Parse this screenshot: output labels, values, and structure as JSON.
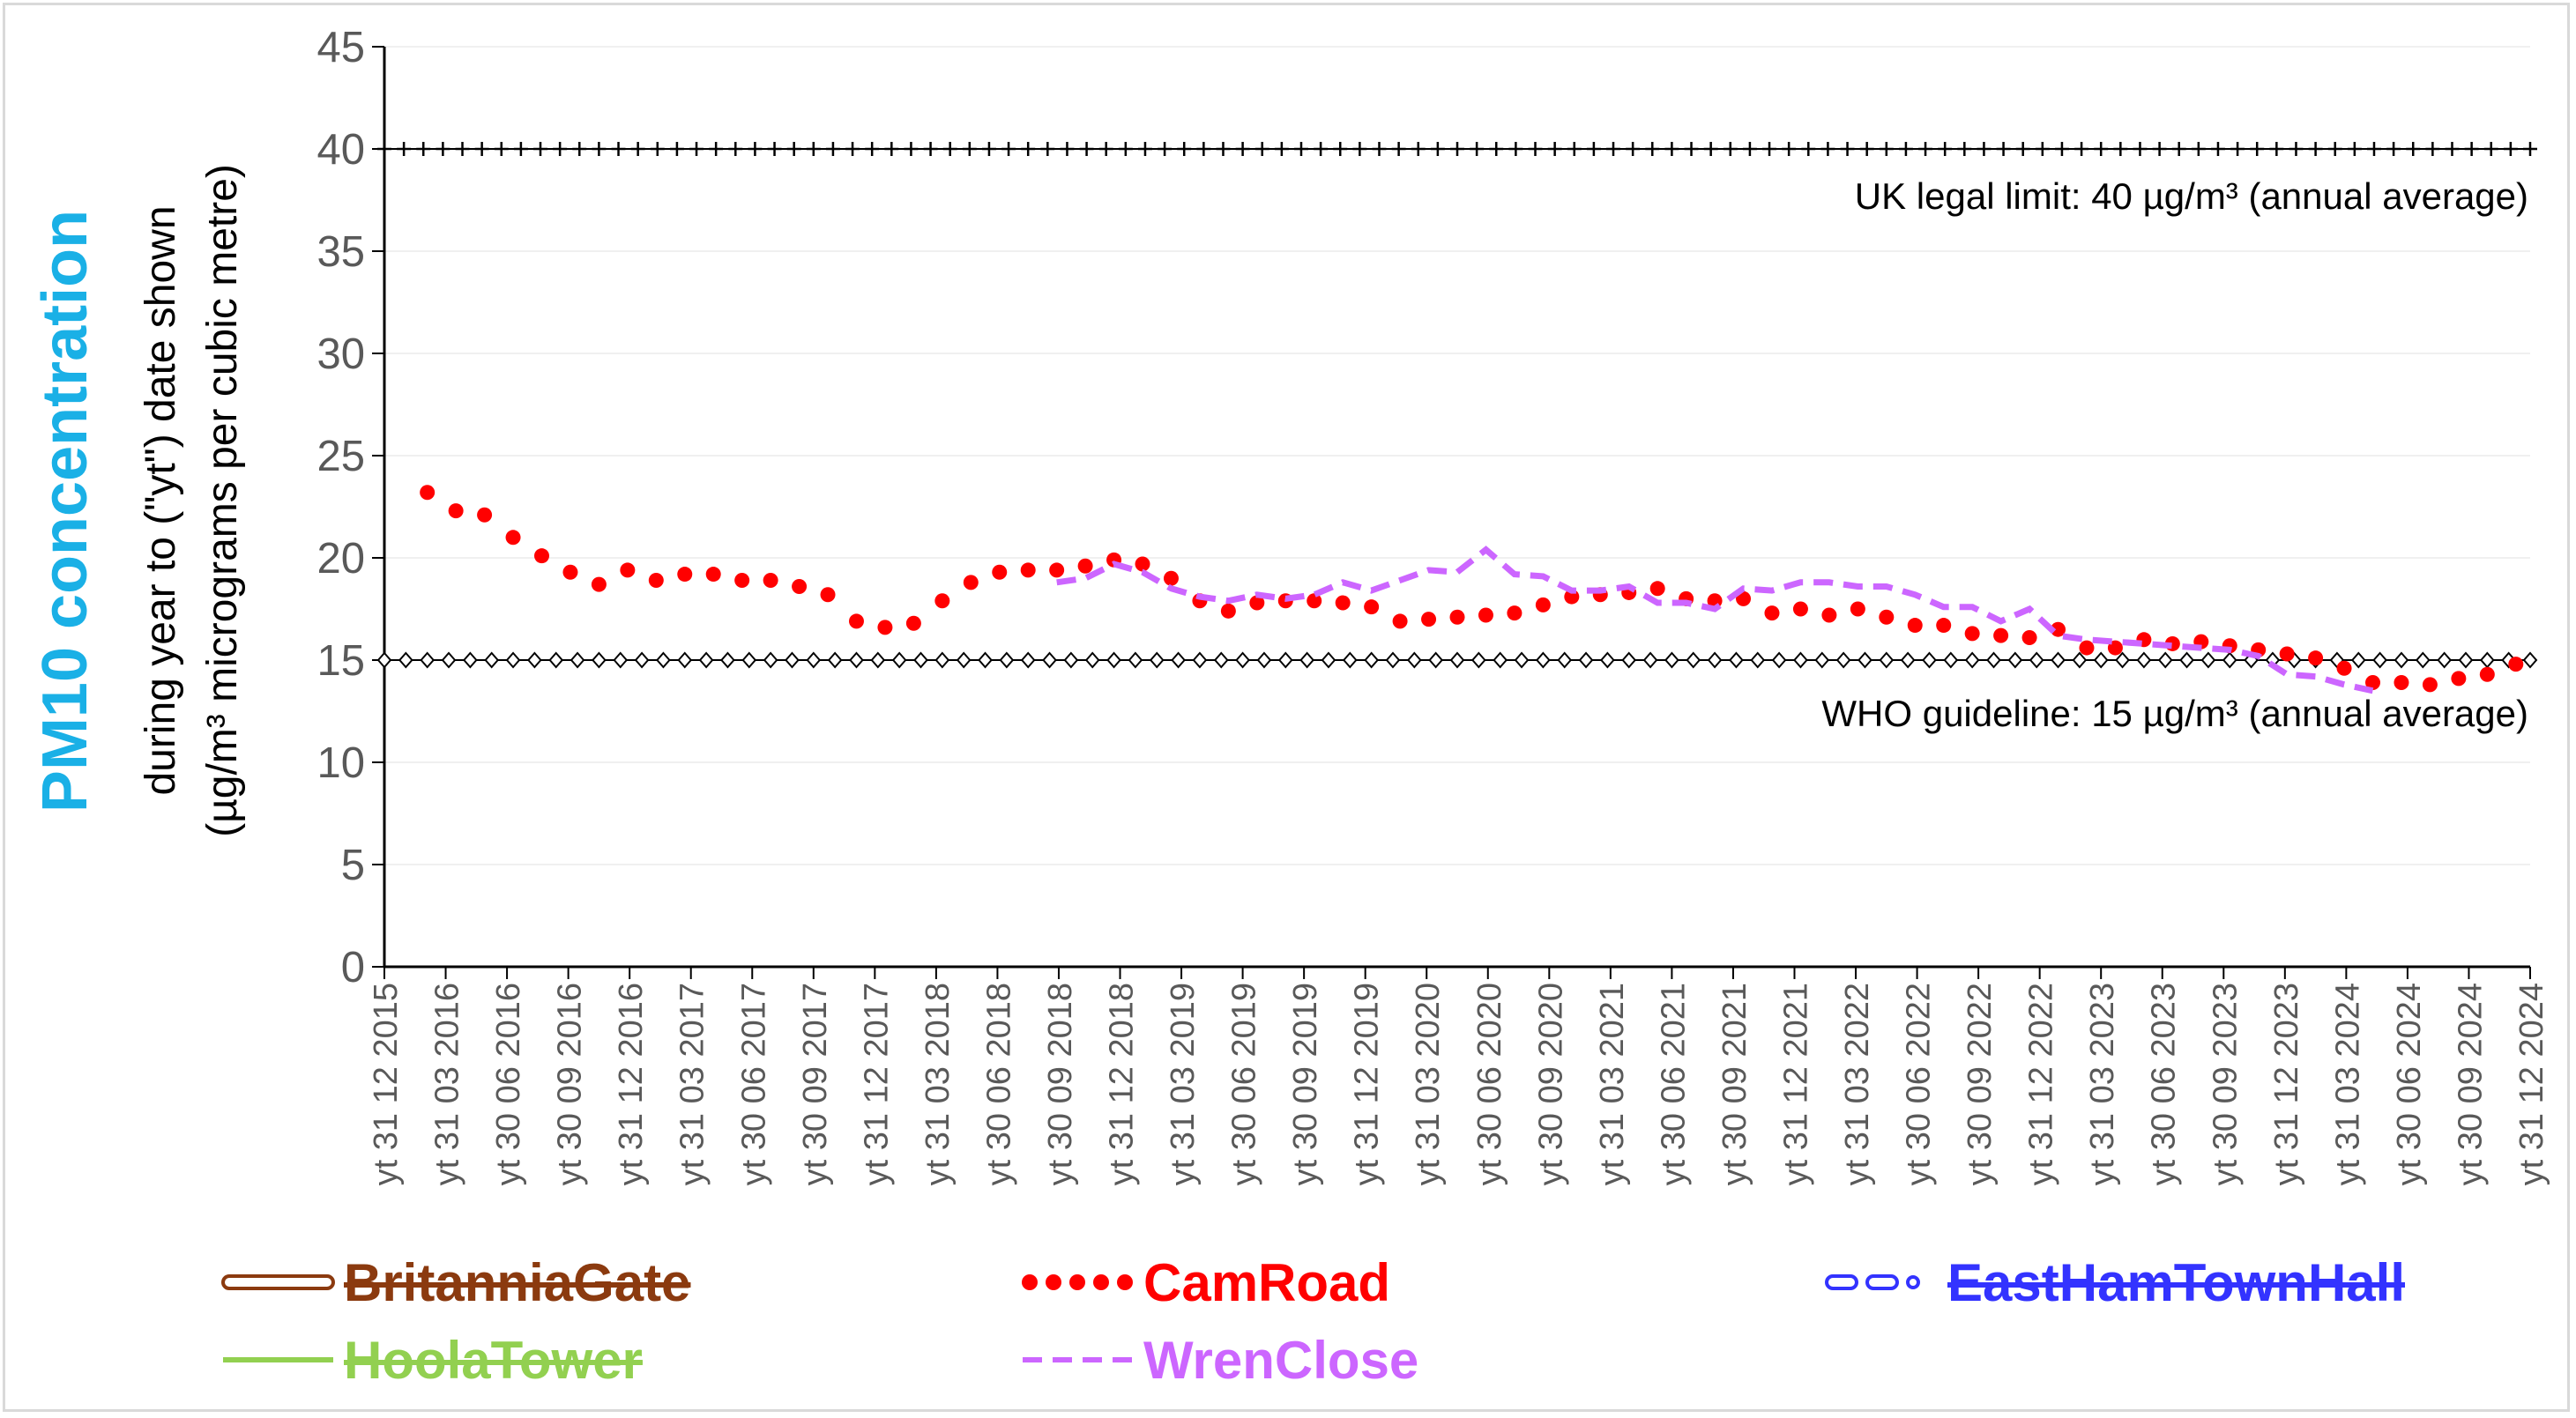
{
  "chart_data": {
    "type": "line",
    "ylabel_main": "PM10 concentration",
    "ylabel_line1": "during year to (\"yt\") date shown",
    "ylabel_line2": "(µg/m³ micrograms per cubic metre)",
    "ylim": [
      0,
      45
    ],
    "yticks": [
      0,
      5,
      10,
      15,
      20,
      25,
      30,
      35,
      40,
      45
    ],
    "x_tick_labels": [
      "yt 31 12 2015",
      "yt 31 03 2016",
      "yt 30 06 2016",
      "yt 30 09 2016",
      "yt 31 12 2016",
      "yt 31 03 2017",
      "yt 30 06 2017",
      "yt 30 09 2017",
      "yt 31 12 2017",
      "yt 31 03 2018",
      "yt 30 06 2018",
      "yt 30 09 2018",
      "yt 31 12 2018",
      "yt 31 03 2019",
      "yt 30 06 2019",
      "yt 30 09 2019",
      "yt 31 12 2019",
      "yt 31 03 2020",
      "yt 30 06 2020",
      "yt 30 09 2020",
      "yt 31 03 2021",
      "yt 30 06 2021",
      "yt 30 09 2021",
      "yt 31 12 2021",
      "yt 31 03 2022",
      "yt 30 06 2022",
      "yt 30 09 2022",
      "yt 31 12 2022",
      "yt 31 03 2023",
      "yt 30 06 2023",
      "yt 30 09 2023",
      "yt 31 12 2023",
      "yt 31 03 2024",
      "yt 30 06 2024",
      "yt 30 09 2024",
      "yt 31 12 2024"
    ],
    "reference_lines": [
      {
        "name": "UK legal limit",
        "value": 40,
        "label": "UK legal limit:  40 µg/m³ (annual average)",
        "marker": "plus",
        "color": "#000000"
      },
      {
        "name": "WHO guideline",
        "value": 15,
        "label": "WHO guideline:  15 µg/m³ (annual average)",
        "marker": "diamond-open",
        "color": "#000000"
      }
    ],
    "series": [
      {
        "name": "BritanniaGate",
        "color": "#8b3a0f",
        "style": "double",
        "strikethrough": true,
        "x_start": null,
        "values": []
      },
      {
        "name": "CamRoad",
        "color": "#ff0000",
        "style": "dotted",
        "strikethrough": false,
        "x_start": 1,
        "values": [
          23.2,
          22.3,
          22.1,
          21.0,
          20.1,
          19.3,
          18.7,
          19.4,
          18.9,
          19.2,
          19.2,
          18.9,
          18.9,
          18.6,
          18.2,
          16.9,
          16.6,
          16.8,
          17.9,
          18.8,
          19.3,
          19.4,
          19.4,
          19.6,
          19.9,
          19.7,
          19.0,
          17.9,
          17.4,
          17.8,
          17.9,
          17.9,
          17.8,
          17.6,
          16.9,
          17.0,
          17.1,
          17.2,
          17.3,
          17.7,
          18.1,
          18.2,
          18.3,
          18.5,
          18.0,
          17.9,
          18.0,
          17.3,
          17.5,
          17.2,
          17.5,
          17.1,
          16.7,
          16.7,
          16.3,
          16.2,
          16.1,
          16.5,
          15.6,
          15.6,
          16.0,
          15.8,
          15.9,
          15.7,
          15.5,
          15.3,
          15.1,
          14.6,
          13.9,
          13.9,
          13.8,
          14.1,
          14.3,
          14.8
        ]
      },
      {
        "name": "EastHamTownHall",
        "color": "#3333ff",
        "style": "dash-dot-open",
        "strikethrough": true,
        "x_start": null,
        "values": []
      },
      {
        "name": "HoolaTower",
        "color": "#92d050",
        "style": "solid",
        "strikethrough": true,
        "x_start": null,
        "values": []
      },
      {
        "name": "WrenClose",
        "color": "#cc66ff",
        "style": "dashed",
        "strikethrough": false,
        "x_start": 23,
        "values": [
          18.8,
          19.0,
          19.7,
          19.3,
          18.5,
          18.1,
          17.9,
          18.2,
          18.0,
          18.2,
          18.8,
          18.4,
          18.9,
          19.4,
          19.3,
          20.4,
          19.2,
          19.1,
          18.4,
          18.4,
          18.6,
          17.8,
          17.8,
          17.5,
          18.5,
          18.4,
          18.8,
          18.8,
          18.6,
          18.6,
          18.2,
          17.6,
          17.6,
          16.9,
          17.5,
          16.2,
          16.0,
          15.9,
          15.8,
          15.7,
          15.6,
          15.5,
          15.2,
          14.3,
          14.2,
          13.8,
          13.5
        ]
      }
    ],
    "x_count": 75,
    "grid": "horizontal",
    "legend_position": "bottom"
  }
}
